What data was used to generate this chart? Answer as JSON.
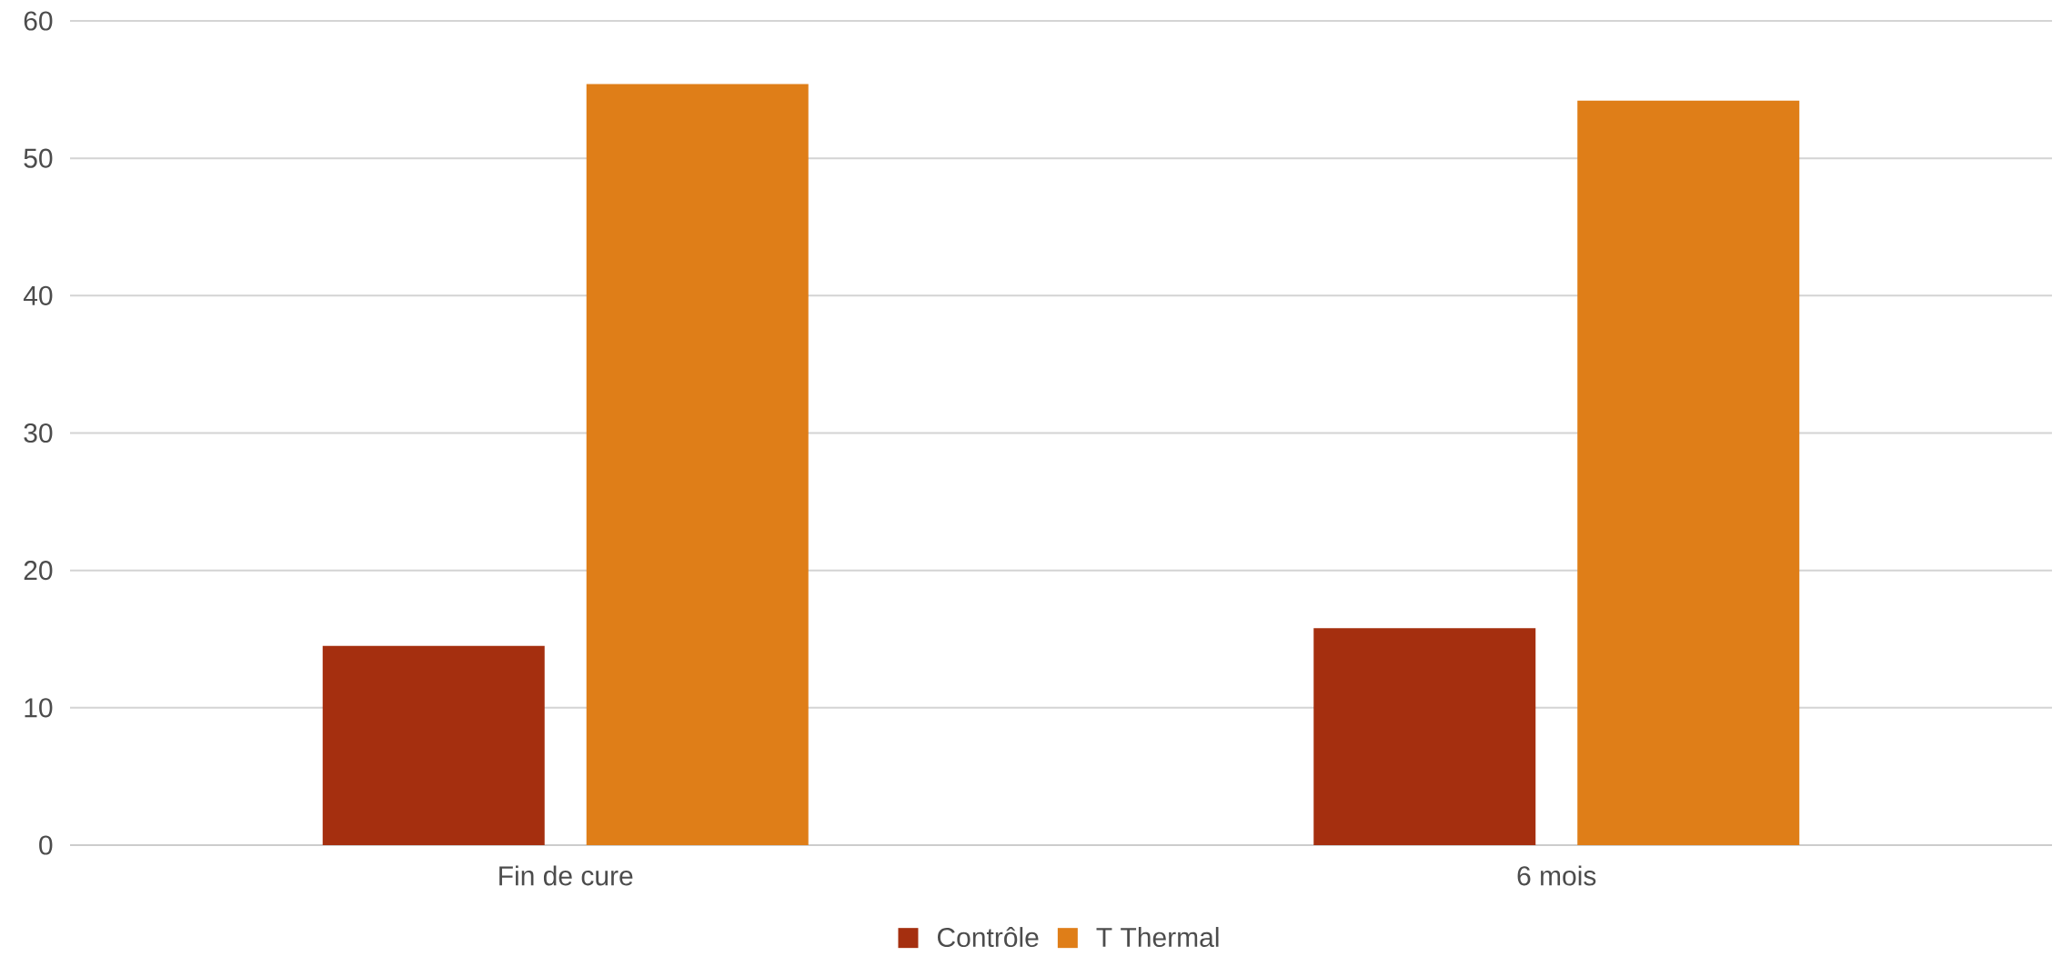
{
  "chart_data": {
    "type": "bar",
    "categories": [
      "Fin de cure",
      "6 mois"
    ],
    "series": [
      {
        "name": "Contrôle",
        "color": "#a52f0f",
        "values": [
          14.5,
          15.8
        ]
      },
      {
        "name": "T Thermal",
        "color": "#df7e18",
        "values": [
          55.4,
          54.2
        ]
      }
    ],
    "ylim": [
      0,
      60
    ],
    "yticks": [
      0,
      10,
      20,
      30,
      40,
      50,
      60
    ],
    "grid": "y",
    "legend": "bottom"
  }
}
